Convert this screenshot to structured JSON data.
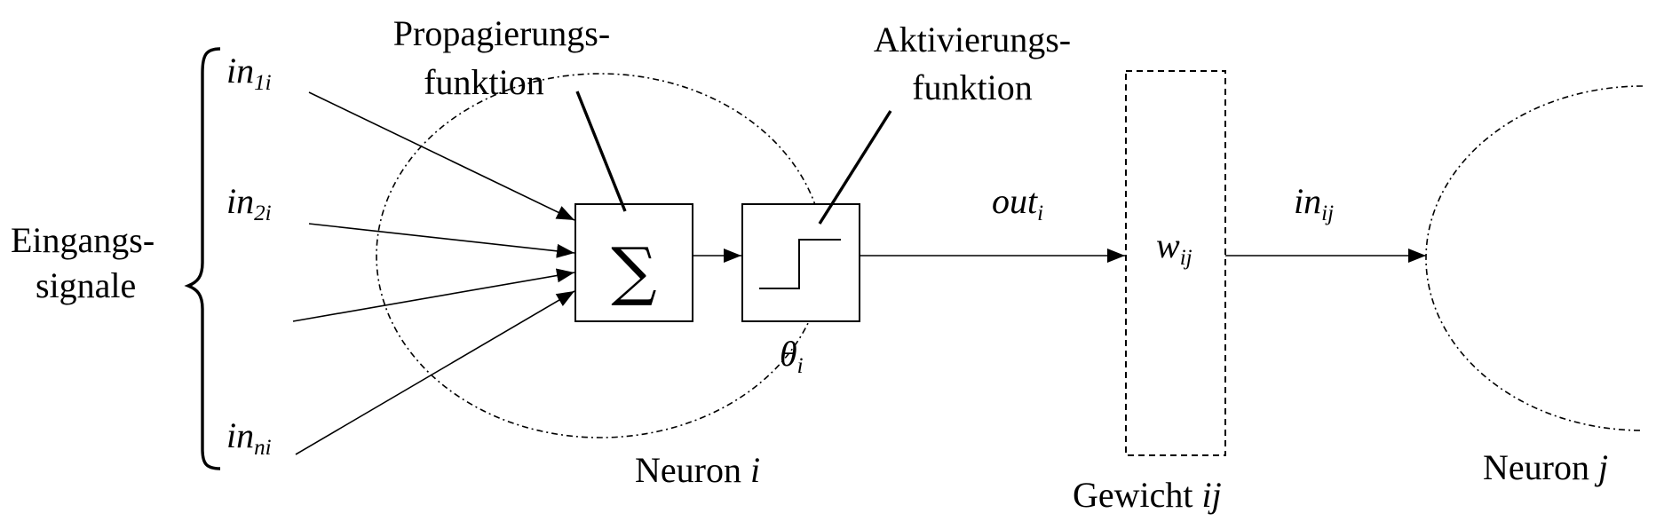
{
  "labels": {
    "input_signals_line1": "Eingangs-",
    "input_signals_line2": "signale",
    "propagation_line1": "Propagierungs-",
    "propagation_line2": "funktion",
    "activation_line1": "Aktivierungs-",
    "activation_line2": "funktion",
    "sum_symbol": "∑",
    "theta": "θ",
    "theta_sub": "i",
    "out_main": "out",
    "out_sub": "i",
    "weight_main": "w",
    "weight_sub": "ij",
    "in_ij_main": "in",
    "in_ij_sub": "ij",
    "neuron_i_text": "Neuron",
    "neuron_i_var": "i",
    "weight_caption_text": "Gewicht",
    "weight_caption_var": "ij",
    "neuron_j_text": "Neuron",
    "neuron_j_var": "j"
  },
  "inputs": [
    {
      "main": "in",
      "sub": "1i"
    },
    {
      "main": "in",
      "sub": "2i"
    },
    {
      "main": "in",
      "sub": "ni"
    }
  ]
}
